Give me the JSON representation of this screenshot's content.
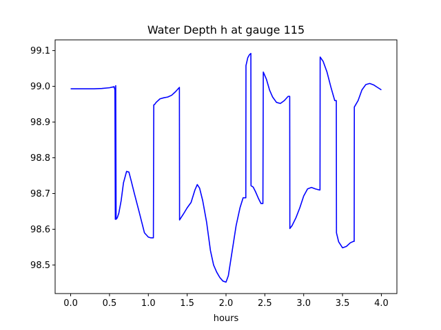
{
  "chart_data": {
    "type": "line",
    "title": "Water Depth h at gauge 115",
    "xlabel": "hours",
    "ylabel": "",
    "xlim": [
      -0.2,
      4.2
    ],
    "ylim": [
      98.42,
      99.13
    ],
    "xticks": [
      0.0,
      0.5,
      1.0,
      1.5,
      2.0,
      2.5,
      3.0,
      3.5,
      4.0
    ],
    "xtick_labels": [
      "0.0",
      "0.5",
      "1.0",
      "1.5",
      "2.0",
      "2.5",
      "3.0",
      "3.5",
      "4.0"
    ],
    "yticks": [
      98.5,
      98.6,
      98.7,
      98.8,
      98.9,
      99.0,
      99.1
    ],
    "ytick_labels": [
      "98.5",
      "98.6",
      "98.7",
      "98.8",
      "98.9",
      "99.0",
      "99.1"
    ],
    "grid": false,
    "series": [
      {
        "color": "#0000ff",
        "x": [
          0.0,
          0.1,
          0.2,
          0.3,
          0.4,
          0.5,
          0.56,
          0.57,
          0.575,
          0.58,
          0.585,
          0.6,
          0.62,
          0.65,
          0.68,
          0.72,
          0.75,
          0.78,
          0.82,
          0.88,
          0.95,
          1.0,
          1.03,
          1.065,
          1.07,
          1.08,
          1.1,
          1.15,
          1.2,
          1.25,
          1.3,
          1.35,
          1.4,
          1.402,
          1.45,
          1.5,
          1.55,
          1.6,
          1.63,
          1.66,
          1.7,
          1.75,
          1.8,
          1.84,
          1.88,
          1.92,
          1.96,
          2.0,
          2.03,
          2.08,
          2.13,
          2.18,
          2.22,
          2.255,
          2.257,
          2.28,
          2.3,
          2.32,
          2.322,
          2.35,
          2.38,
          2.42,
          2.45,
          2.475,
          2.48,
          2.52,
          2.56,
          2.6,
          2.65,
          2.7,
          2.75,
          2.8,
          2.82,
          2.822,
          2.85,
          2.9,
          2.95,
          3.0,
          3.05,
          3.1,
          3.15,
          3.2,
          3.21,
          3.212,
          3.25,
          3.3,
          3.35,
          3.4,
          3.42,
          3.422,
          3.45,
          3.5,
          3.55,
          3.6,
          3.64,
          3.65,
          3.652,
          3.7,
          3.75,
          3.8,
          3.85,
          3.9,
          3.95,
          4.0
        ],
        "y": [
          98.993,
          98.993,
          98.993,
          98.993,
          98.994,
          98.996,
          98.999,
          98.99,
          98.628,
          99.002,
          98.628,
          98.632,
          98.645,
          98.68,
          98.73,
          98.762,
          98.76,
          98.735,
          98.7,
          98.65,
          98.59,
          98.578,
          98.576,
          98.576,
          98.948,
          98.949,
          98.955,
          98.965,
          98.968,
          98.97,
          98.975,
          98.985,
          98.997,
          98.626,
          98.642,
          98.66,
          98.675,
          98.71,
          98.725,
          98.715,
          98.68,
          98.62,
          98.54,
          98.5,
          98.48,
          98.465,
          98.455,
          98.452,
          98.47,
          98.54,
          98.61,
          98.66,
          98.688,
          98.688,
          99.058,
          99.08,
          99.088,
          99.092,
          98.722,
          98.718,
          98.705,
          98.685,
          98.672,
          98.672,
          99.04,
          99.02,
          98.99,
          98.97,
          98.955,
          98.952,
          98.96,
          98.972,
          98.972,
          98.602,
          98.61,
          98.632,
          98.66,
          98.693,
          98.713,
          98.717,
          98.713,
          98.71,
          98.71,
          99.082,
          99.07,
          99.04,
          98.998,
          98.96,
          98.96,
          98.59,
          98.565,
          98.548,
          98.552,
          98.562,
          98.566,
          98.566,
          98.942,
          98.96,
          98.99,
          99.005,
          99.008,
          99.004,
          98.997,
          98.99
        ]
      }
    ]
  }
}
